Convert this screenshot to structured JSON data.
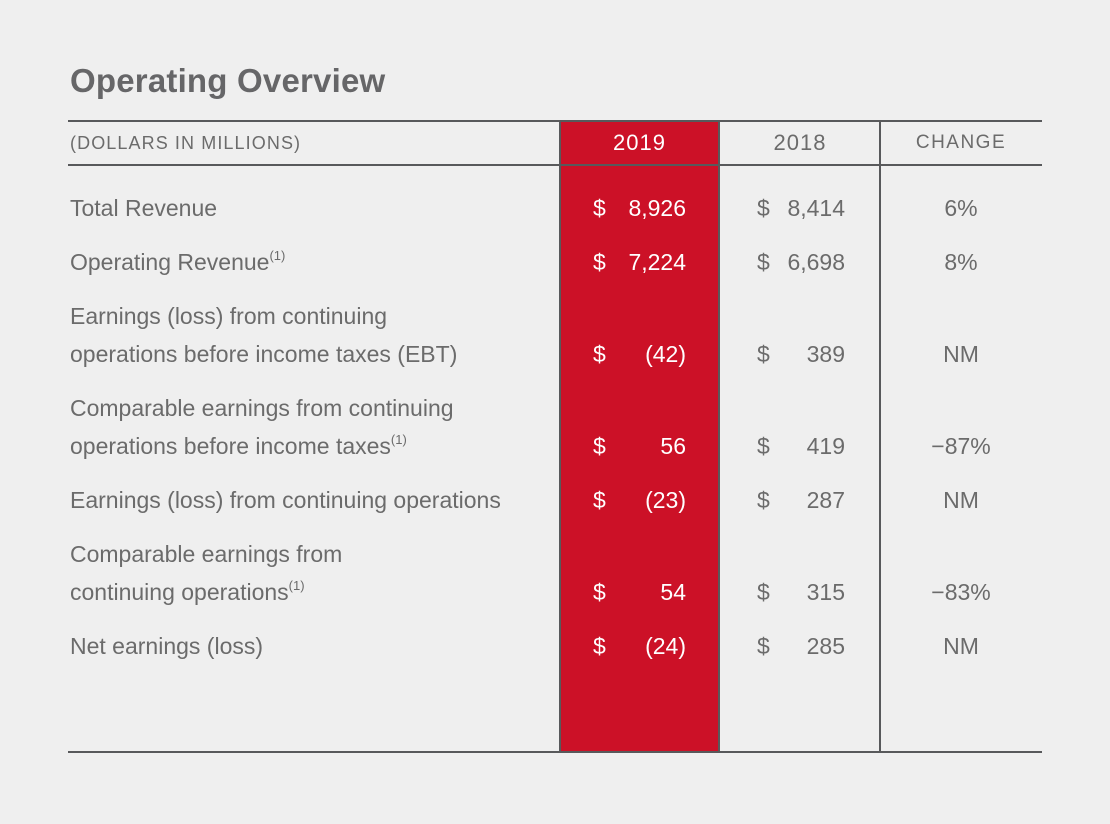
{
  "page": {
    "background": "#efefef"
  },
  "title": "Operating Overview",
  "table": {
    "unit_label": "(DOLLARS IN MILLIONS)",
    "columns": {
      "y2019": "2019",
      "y2018": "2018",
      "change": "CHANGE"
    },
    "currency_symbol": "$",
    "colors": {
      "accent_red": "#cc1127",
      "rule_gray": "#58595b",
      "text_gray": "#6b6b6b",
      "text_on_accent": "#ffffff"
    },
    "rows": [
      {
        "lines": [
          {
            "text": "Total Revenue",
            "sup": null
          }
        ],
        "v2019": "8,926",
        "v2018": "8,414",
        "change": "6%"
      },
      {
        "lines": [
          {
            "text": "Operating Revenue",
            "sup": "(1)"
          }
        ],
        "v2019": "7,224",
        "v2018": "6,698",
        "change": "8%"
      },
      {
        "lines": [
          {
            "text": "Earnings (loss) from continuing",
            "sup": null
          },
          {
            "text": "operations before income taxes (EBT)",
            "sup": null
          }
        ],
        "v2019": "(42)",
        "v2018": "389",
        "change": "NM"
      },
      {
        "lines": [
          {
            "text": "Comparable earnings from continuing",
            "sup": null
          },
          {
            "text": "operations before income taxes",
            "sup": "(1)"
          }
        ],
        "v2019": "56",
        "v2018": "419",
        "change": "−87%"
      },
      {
        "lines": [
          {
            "text": "Earnings (loss) from continuing operations",
            "sup": null
          }
        ],
        "v2019": "(23)",
        "v2018": "287",
        "change": "NM"
      },
      {
        "lines": [
          {
            "text": "Comparable earnings from",
            "sup": null
          },
          {
            "text": "continuing operations",
            "sup": "(1)"
          }
        ],
        "v2019": "54",
        "v2018": "315",
        "change": "−83%"
      },
      {
        "lines": [
          {
            "text": "Net earnings (loss)",
            "sup": null
          }
        ],
        "v2019": "(24)",
        "v2018": "285",
        "change": "NM"
      }
    ]
  }
}
